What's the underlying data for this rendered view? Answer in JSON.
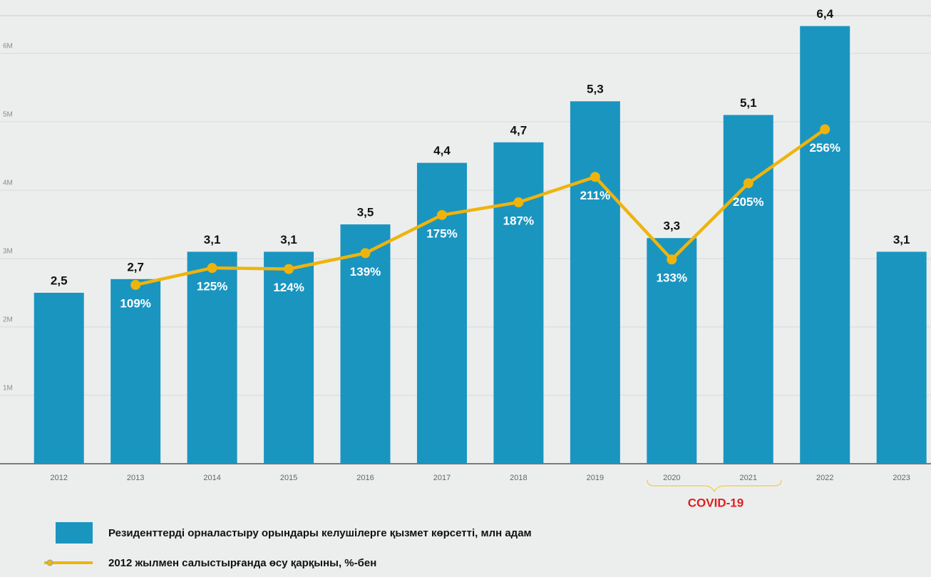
{
  "chart_data": {
    "type": "bar",
    "categories": [
      "2012",
      "2013",
      "2014",
      "2015",
      "2016",
      "2017",
      "2018",
      "2019",
      "2020",
      "2021",
      "2022",
      "2023"
    ],
    "series": [
      {
        "name": "Резиденттерді орналастыру орындары келушілерге қызмет көрсетті, млн адам",
        "type": "bar",
        "color": "#1a95c0",
        "values": [
          2.5,
          2.7,
          3.1,
          3.1,
          3.5,
          4.4,
          4.7,
          5.3,
          3.3,
          5.1,
          6.4,
          3.1
        ],
        "value_labels": [
          "2,5",
          "2,7",
          "3,1",
          "3,1",
          "3,5",
          "4,4",
          "4,7",
          "5,3",
          "3,3",
          "5,1",
          "6,4",
          "3,1"
        ]
      },
      {
        "name": "2012 жылмен салыстырғанда өсу қарқыны, %-бен",
        "type": "line",
        "color": "#efb40c",
        "axis": "y2",
        "values": [
          null,
          109,
          125,
          124,
          139,
          175,
          187,
          211,
          133,
          205,
          256,
          null
        ],
        "value_labels": [
          null,
          "109%",
          "125%",
          "124%",
          "139%",
          "175%",
          "187%",
          "211%",
          "133%",
          "205%",
          "256%",
          null
        ]
      }
    ],
    "ylim": [
      0,
      6.5
    ],
    "yticks": [
      {
        "value": 1,
        "label": "1M"
      },
      {
        "value": 2,
        "label": "2M"
      },
      {
        "value": 3,
        "label": "3M"
      },
      {
        "value": 4,
        "label": "4M"
      },
      {
        "value": 5,
        "label": "5M"
      },
      {
        "value": 6,
        "label": "6M"
      }
    ],
    "y2lim": [
      -60,
      360
    ],
    "grid": true,
    "annotation": "COVID-19"
  }
}
